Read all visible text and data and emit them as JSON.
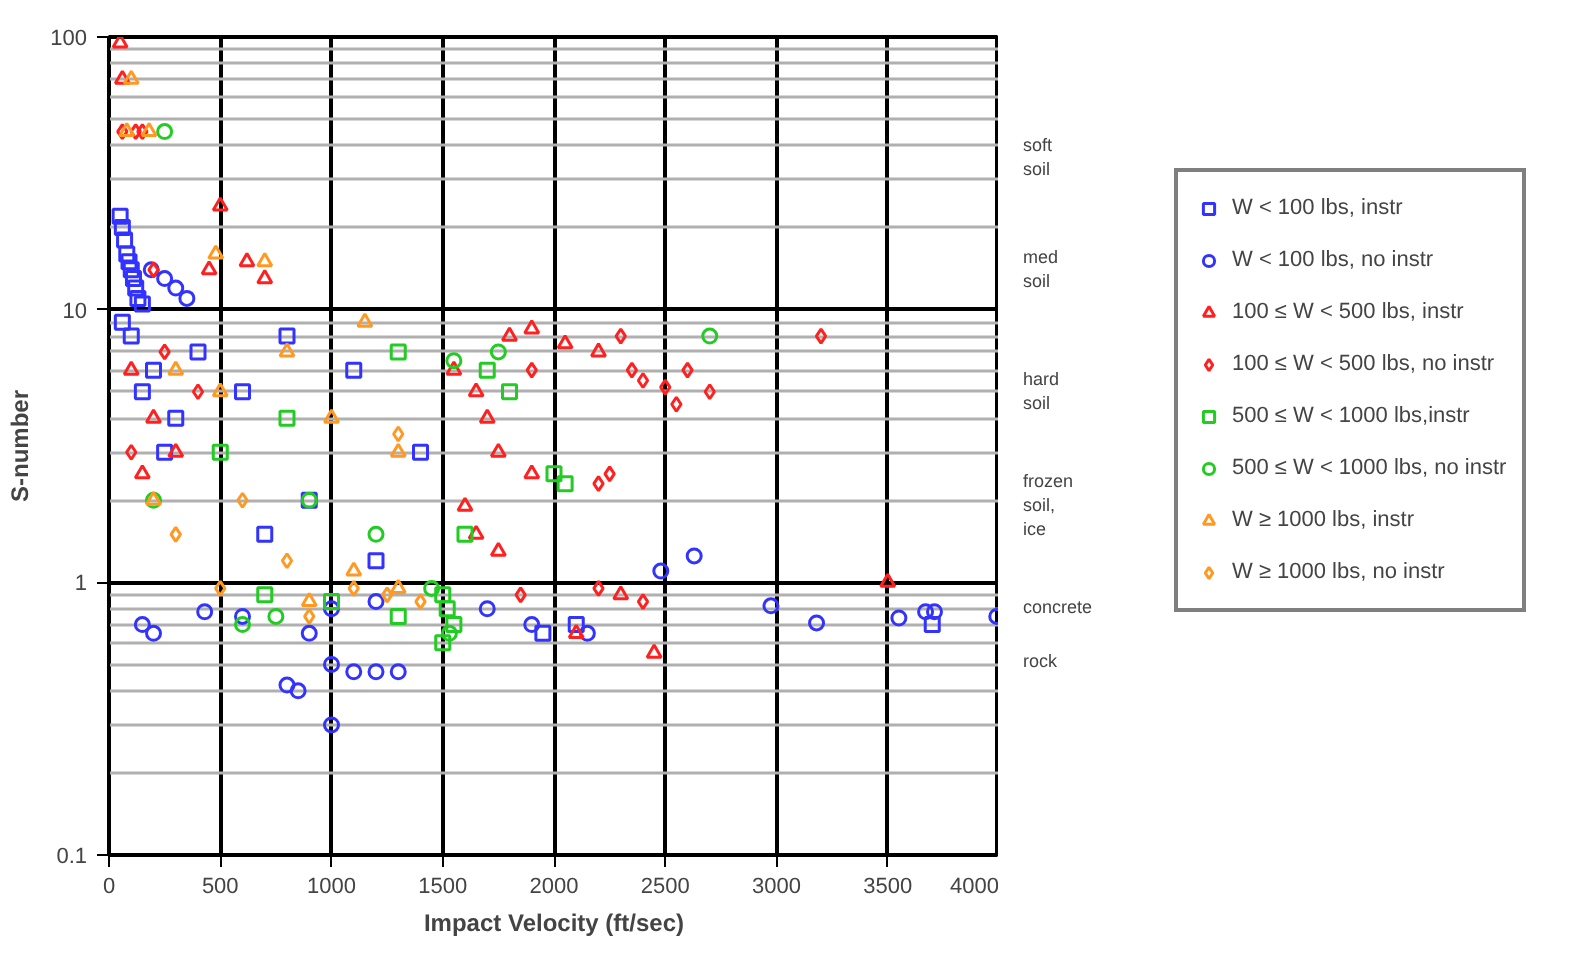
{
  "chart_data": {
    "type": "scatter",
    "xlabel": "Impact Velocity (ft/sec)",
    "ylabel": "S-number",
    "log": "y",
    "xlim": [
      0,
      4000
    ],
    "ylim": [
      0.1,
      100
    ],
    "xticks": [
      0,
      500,
      1000,
      1500,
      2000,
      2500,
      3000,
      3500,
      4000
    ],
    "yticks": [
      0.1,
      1,
      10,
      100
    ],
    "grid": true,
    "legend": "right",
    "series": [
      {
        "name": "W < 100 lbs, instr",
        "color": "#3333ff",
        "marker": "square",
        "x": [
          50,
          60,
          70,
          80,
          90,
          100,
          110,
          120,
          130,
          150,
          60,
          100,
          200,
          150,
          300,
          250,
          400,
          600,
          800,
          1100,
          1400,
          900,
          700,
          1200,
          1950,
          2100,
          3700
        ],
        "values": [
          22,
          20,
          18,
          16,
          15,
          14,
          13,
          12,
          11,
          10.5,
          9,
          8,
          6,
          5,
          4,
          3,
          7,
          5,
          8,
          6,
          3,
          2,
          1.5,
          1.2,
          0.65,
          0.7,
          0.7
        ]
      },
      {
        "name": "W < 100 lbs, no instr",
        "color": "#3333ff",
        "marker": "circle",
        "x": [
          190,
          250,
          300,
          350,
          2480,
          2630,
          2975,
          3180,
          3550,
          3670,
          3710,
          3990,
          800,
          850,
          1000,
          1000,
          1100,
          1200,
          1300,
          150,
          200,
          430,
          600,
          900,
          1000,
          1200,
          1700,
          1900,
          2150
        ],
        "values": [
          14,
          13,
          12,
          11,
          1.1,
          1.25,
          0.82,
          0.71,
          0.74,
          0.78,
          0.78,
          0.75,
          0.42,
          0.4,
          0.3,
          0.5,
          0.47,
          0.47,
          0.47,
          0.7,
          0.65,
          0.78,
          0.75,
          0.65,
          0.8,
          0.85,
          0.8,
          0.7,
          0.65
        ]
      },
      {
        "name": "100 ≤ W < 500 lbs, instr",
        "color": "#ff2020",
        "marker": "triangle",
        "x": [
          50,
          60,
          500,
          450,
          620,
          700,
          1800,
          1900,
          2050,
          2200,
          1650,
          1700,
          1750,
          1900,
          1600,
          1650,
          1750,
          2100,
          2450,
          3500,
          2300,
          100,
          200,
          300,
          150,
          1550
        ],
        "values": [
          95,
          70,
          24,
          14,
          15,
          13,
          8,
          8.5,
          7.5,
          7,
          5,
          4,
          3,
          2.5,
          1.9,
          1.5,
          1.3,
          0.65,
          0.55,
          1.0,
          0.9,
          6,
          4,
          3,
          2.5,
          6
        ]
      },
      {
        "name": "100 ≤ W < 500 lbs, no instr",
        "color": "#ff2020",
        "marker": "diamond",
        "x": [
          60,
          120,
          150,
          200,
          2300,
          3200,
          2350,
          2400,
          2500,
          2600,
          2700,
          2550,
          2250,
          2200,
          2200,
          2400,
          1850,
          1900,
          400,
          250,
          100
        ],
        "values": [
          45,
          45,
          45,
          14,
          8,
          8,
          6,
          5.5,
          5.2,
          6,
          5,
          4.5,
          2.5,
          2.3,
          0.95,
          0.85,
          0.9,
          6,
          5,
          7,
          3
        ]
      },
      {
        "name": "500 ≤ W < 1000 lbs,instr",
        "color": "#22cc22",
        "marker": "square",
        "x": [
          1300,
          1700,
          1800,
          2000,
          2050,
          1600,
          1500,
          1520,
          1550,
          1500,
          700,
          1000,
          1300,
          500,
          800
        ],
        "values": [
          7,
          6,
          5,
          2.5,
          2.3,
          1.5,
          0.9,
          0.8,
          0.7,
          0.6,
          0.9,
          0.85,
          0.75,
          3,
          4
        ]
      },
      {
        "name": "500 ≤ W < 1000 lbs, no instr",
        "color": "#22cc22",
        "marker": "circle",
        "x": [
          250,
          2700,
          1750,
          1550,
          1450,
          1530,
          600,
          750,
          200,
          900,
          1200
        ],
        "values": [
          45,
          8,
          7,
          6.5,
          0.95,
          0.65,
          0.7,
          0.75,
          2,
          2,
          1.5
        ]
      },
      {
        "name": "W ≥ 1000 lbs, instr",
        "color": "#ff9922",
        "marker": "triangle",
        "x": [
          100,
          80,
          180,
          480,
          700,
          1150,
          300,
          500,
          800,
          1000,
          1300,
          200,
          1100,
          900,
          1300
        ],
        "values": [
          70,
          45,
          45,
          16,
          15,
          9,
          6,
          5,
          7,
          4,
          3,
          2,
          1.1,
          0.85,
          0.95
        ]
      },
      {
        "name": "W ≥ 1000 lbs, no instr",
        "color": "#ff9922",
        "marker": "diamond",
        "x": [
          500,
          900,
          1100,
          1250,
          1400,
          300,
          600,
          1300,
          800
        ],
        "values": [
          0.95,
          0.75,
          0.95,
          0.9,
          0.85,
          1.5,
          2,
          3.5,
          1.2
        ]
      }
    ],
    "annotations": [
      "soft\nsoil",
      "med\nsoil",
      "hard\nsoil",
      "frozen\nsoil,\nice",
      "concrete",
      "rock"
    ]
  }
}
